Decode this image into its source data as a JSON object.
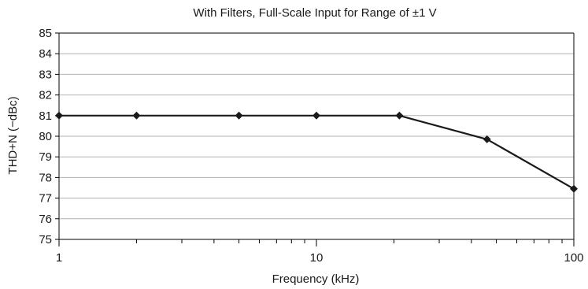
{
  "chart_data": {
    "type": "line",
    "title": "With Filters, Full-Scale Input for Range of ±1 V",
    "xlabel": "Frequency (kHz)",
    "ylabel": "THD+N (−dBc)",
    "x_scale": "log",
    "xlim": [
      1,
      100
    ],
    "ylim": [
      75,
      85
    ],
    "x_ticks": [
      "1",
      "10",
      "100"
    ],
    "y_ticks": [
      "75",
      "76",
      "77",
      "78",
      "79",
      "80",
      "81",
      "82",
      "83",
      "84",
      "85"
    ],
    "grid": "horizontal",
    "series": [
      {
        "x": [
          1,
          2,
          5,
          10,
          21,
          46,
          100
        ],
        "y": [
          81.0,
          81.0,
          81.0,
          81.0,
          81.0,
          79.85,
          77.45
        ],
        "color": "#1a1a1a",
        "marker": "diamond"
      }
    ]
  }
}
